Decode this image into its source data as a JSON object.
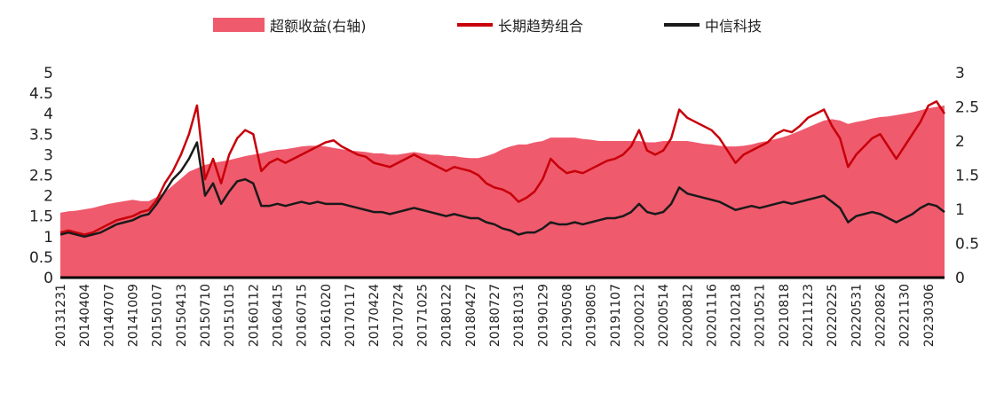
{
  "chart_data": {
    "type": "line",
    "legend": "top",
    "grid": false,
    "categories": [
      "20131231",
      null,
      null,
      "20140404",
      null,
      null,
      "20140707",
      null,
      null,
      "20141009",
      null,
      null,
      "20150107",
      null,
      null,
      "20150413",
      null,
      null,
      "20150710",
      null,
      null,
      "20151015",
      null,
      null,
      "20160112",
      null,
      null,
      "20160415",
      null,
      null,
      "20160715",
      null,
      null,
      "20161020",
      null,
      null,
      "20170117",
      null,
      null,
      "20170424",
      null,
      null,
      "20170724",
      null,
      null,
      "20171025",
      null,
      null,
      "20180122",
      null,
      null,
      "20180427",
      null,
      null,
      "20180727",
      null,
      null,
      "20181031",
      null,
      null,
      "20190129",
      null,
      null,
      "20190508",
      null,
      null,
      "20190805",
      null,
      null,
      "20191107",
      null,
      null,
      "20200212",
      null,
      null,
      "20200514",
      null,
      null,
      "20200812",
      null,
      null,
      "20201116",
      null,
      null,
      "20210218",
      null,
      null,
      "20210521",
      null,
      null,
      "20210818",
      null,
      null,
      "20211123",
      null,
      null,
      "20220225",
      null,
      null,
      "20220531",
      null,
      null,
      "20220826",
      null,
      null,
      "20221130",
      null,
      null,
      "20230306",
      null,
      null
    ],
    "series": [
      {
        "name": "超额收益(右轴)",
        "type": "area",
        "axis": "y2",
        "color": "#ef5a6c",
        "values": [
          0.95,
          0.97,
          0.98,
          1.0,
          1.02,
          1.05,
          1.08,
          1.1,
          1.12,
          1.14,
          1.12,
          1.12,
          1.18,
          1.25,
          1.35,
          1.45,
          1.55,
          1.6,
          1.65,
          1.68,
          1.7,
          1.72,
          1.75,
          1.78,
          1.8,
          1.82,
          1.85,
          1.87,
          1.88,
          1.9,
          1.92,
          1.93,
          1.93,
          1.92,
          1.9,
          1.88,
          1.86,
          1.85,
          1.84,
          1.82,
          1.82,
          1.8,
          1.8,
          1.82,
          1.84,
          1.82,
          1.8,
          1.8,
          1.78,
          1.78,
          1.76,
          1.75,
          1.75,
          1.78,
          1.82,
          1.88,
          1.92,
          1.95,
          1.95,
          1.98,
          2.0,
          2.05,
          2.05,
          2.05,
          2.05,
          2.03,
          2.02,
          2.0,
          2.0,
          2.0,
          2.0,
          2.0,
          2.0,
          1.98,
          1.98,
          2.0,
          2.0,
          2.0,
          2.0,
          1.98,
          1.96,
          1.95,
          1.93,
          1.92,
          1.92,
          1.93,
          1.95,
          1.98,
          2.0,
          2.03,
          2.06,
          2.1,
          2.15,
          2.2,
          2.25,
          2.3,
          2.32,
          2.3,
          2.25,
          2.28,
          2.3,
          2.33,
          2.35,
          2.36,
          2.38,
          2.4,
          2.42,
          2.45,
          2.48,
          2.5,
          2.52
        ]
      },
      {
        "name": "长期趋势组合",
        "type": "line",
        "color": "#c8000a",
        "values": [
          1.1,
          1.15,
          1.1,
          1.05,
          1.1,
          1.2,
          1.3,
          1.4,
          1.45,
          1.5,
          1.6,
          1.65,
          1.9,
          2.3,
          2.6,
          3.0,
          3.5,
          4.2,
          2.4,
          2.9,
          2.3,
          3.0,
          3.4,
          3.6,
          3.5,
          2.6,
          2.8,
          2.9,
          2.8,
          2.9,
          3.0,
          3.1,
          3.2,
          3.3,
          3.35,
          3.2,
          3.1,
          3.0,
          2.95,
          2.8,
          2.75,
          2.7,
          2.8,
          2.9,
          3.0,
          2.9,
          2.8,
          2.7,
          2.6,
          2.7,
          2.65,
          2.6,
          2.5,
          2.3,
          2.2,
          2.15,
          2.05,
          1.85,
          1.95,
          2.1,
          2.4,
          2.9,
          2.7,
          2.55,
          2.6,
          2.55,
          2.65,
          2.75,
          2.85,
          2.9,
          3.0,
          3.2,
          3.6,
          3.1,
          3.0,
          3.1,
          3.4,
          4.1,
          3.9,
          3.8,
          3.7,
          3.6,
          3.4,
          3.1,
          2.8,
          3.0,
          3.1,
          3.2,
          3.3,
          3.5,
          3.6,
          3.55,
          3.7,
          3.9,
          4.0,
          4.1,
          3.7,
          3.4,
          2.7,
          3.0,
          3.2,
          3.4,
          3.5,
          3.2,
          2.9,
          3.2,
          3.5,
          3.8,
          4.2,
          4.3,
          4.0
        ]
      },
      {
        "name": "中信科技",
        "type": "line",
        "color": "#1a1a1a",
        "values": [
          1.05,
          1.1,
          1.05,
          1.0,
          1.05,
          1.1,
          1.2,
          1.3,
          1.35,
          1.4,
          1.5,
          1.55,
          1.8,
          2.1,
          2.4,
          2.6,
          2.9,
          3.3,
          2.0,
          2.3,
          1.8,
          2.1,
          2.35,
          2.4,
          2.3,
          1.75,
          1.75,
          1.8,
          1.75,
          1.8,
          1.85,
          1.8,
          1.85,
          1.8,
          1.8,
          1.8,
          1.75,
          1.7,
          1.65,
          1.6,
          1.6,
          1.55,
          1.6,
          1.65,
          1.7,
          1.65,
          1.6,
          1.55,
          1.5,
          1.55,
          1.5,
          1.45,
          1.45,
          1.35,
          1.3,
          1.2,
          1.15,
          1.05,
          1.1,
          1.1,
          1.2,
          1.35,
          1.3,
          1.3,
          1.35,
          1.3,
          1.35,
          1.4,
          1.45,
          1.45,
          1.5,
          1.6,
          1.8,
          1.6,
          1.55,
          1.6,
          1.8,
          2.2,
          2.05,
          2.0,
          1.95,
          1.9,
          1.85,
          1.75,
          1.65,
          1.7,
          1.75,
          1.7,
          1.75,
          1.8,
          1.85,
          1.8,
          1.85,
          1.9,
          1.95,
          2.0,
          1.85,
          1.7,
          1.35,
          1.5,
          1.55,
          1.6,
          1.55,
          1.45,
          1.35,
          1.45,
          1.55,
          1.7,
          1.8,
          1.75,
          1.6
        ]
      }
    ],
    "ylim": [
      0,
      5
    ],
    "yticks": [
      0,
      0.5,
      1,
      1.5,
      2,
      2.5,
      3,
      3.5,
      4,
      4.5,
      5
    ],
    "y2lim": [
      0,
      3
    ],
    "y2ticks": [
      0,
      0.5,
      1,
      1.5,
      2,
      2.5,
      3
    ]
  }
}
